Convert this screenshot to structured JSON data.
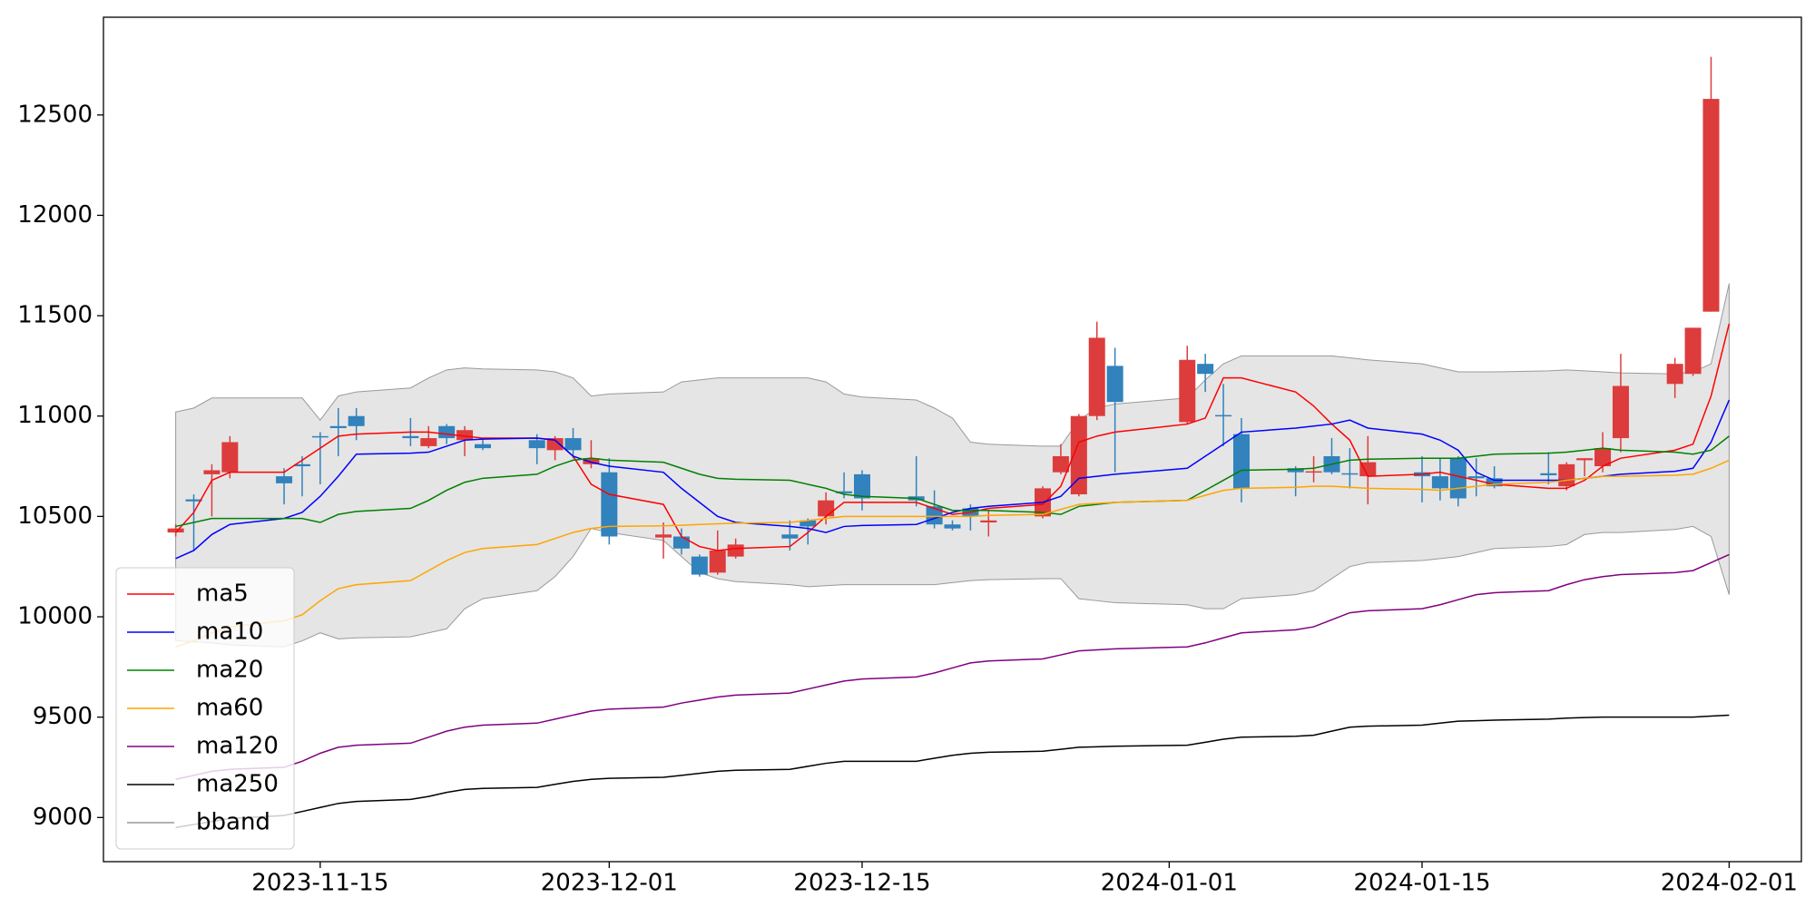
{
  "chart_data": {
    "type": "candlestick",
    "x": [
      "2023-11-07",
      "2023-11-08",
      "2023-11-09",
      "2023-11-10",
      "2023-11-13",
      "2023-11-14",
      "2023-11-15",
      "2023-11-16",
      "2023-11-17",
      "2023-11-20",
      "2023-11-21",
      "2023-11-22",
      "2023-11-23",
      "2023-11-24",
      "2023-11-27",
      "2023-11-28",
      "2023-11-29",
      "2023-11-30",
      "2023-12-01",
      "2023-12-04",
      "2023-12-05",
      "2023-12-06",
      "2023-12-07",
      "2023-12-08",
      "2023-12-11",
      "2023-12-12",
      "2023-12-13",
      "2023-12-14",
      "2023-12-15",
      "2023-12-18",
      "2023-12-19",
      "2023-12-20",
      "2023-12-21",
      "2023-12-22",
      "2023-12-25",
      "2023-12-26",
      "2023-12-27",
      "2023-12-28",
      "2023-12-29",
      "2024-01-02",
      "2024-01-03",
      "2024-01-04",
      "2024-01-05",
      "2024-01-08",
      "2024-01-09",
      "2024-01-10",
      "2024-01-11",
      "2024-01-12",
      "2024-01-15",
      "2024-01-16",
      "2024-01-17",
      "2024-01-18",
      "2024-01-19",
      "2024-01-22",
      "2024-01-23",
      "2024-01-24",
      "2024-01-25",
      "2024-01-26",
      "2024-01-29",
      "2024-01-30",
      "2024-01-31",
      "2024-02-01"
    ],
    "open": [
      10420,
      10585,
      10710,
      10720,
      10700,
      10760,
      10900,
      10950,
      11000,
      10900,
      10850,
      10950,
      10880,
      10860,
      10880,
      10830,
      10890,
      10760,
      10720,
      10395,
      10400,
      10300,
      10220,
      10300,
      10410,
      10480,
      10500,
      10625,
      10710,
      10600,
      10550,
      10460,
      10540,
      10470,
      10500,
      10720,
      10610,
      11000,
      11250,
      10970,
      11260,
      11005,
      10910,
      10740,
      10720,
      10800,
      10715,
      10700,
      10720,
      10700,
      10790,
      10700,
      10690,
      10715,
      10650,
      10780,
      10750,
      10890,
      11160,
      11210,
      11520,
      null
    ],
    "high": [
      10460,
      10610,
      10760,
      10900,
      10740,
      10800,
      10920,
      11040,
      11040,
      10990,
      10950,
      10960,
      10950,
      10890,
      10910,
      10900,
      10940,
      10880,
      10790,
      10470,
      10440,
      10310,
      10430,
      10390,
      10480,
      10490,
      10620,
      10720,
      10730,
      10800,
      10630,
      10480,
      10560,
      10530,
      10650,
      10860,
      11010,
      11470,
      11340,
      11350,
      11310,
      11160,
      10990,
      10750,
      10800,
      10890,
      10840,
      10900,
      10800,
      10790,
      10800,
      10790,
      10750,
      10820,
      10770,
      10790,
      10920,
      11310,
      11290,
      11440,
      12790,
      null
    ],
    "low": [
      10400,
      10330,
      10500,
      10690,
      10560,
      10600,
      10660,
      10800,
      10880,
      10850,
      10840,
      10860,
      10800,
      10830,
      10760,
      10780,
      10790,
      10740,
      10360,
      10290,
      10310,
      10200,
      10210,
      10290,
      10330,
      10360,
      10460,
      10590,
      10530,
      10550,
      10440,
      10430,
      10430,
      10400,
      10490,
      10710,
      10600,
      10980,
      10720,
      10960,
      11120,
      10850,
      10570,
      10600,
      10670,
      10710,
      10640,
      10560,
      10570,
      10580,
      10550,
      10600,
      10640,
      10660,
      10630,
      10700,
      10720,
      10820,
      11090,
      11200,
      11520,
      null
    ],
    "close": [
      10440,
      10575,
      10730,
      10870,
      10665,
      10750,
      10895,
      10940,
      10950,
      10890,
      10890,
      10890,
      10930,
      10840,
      10840,
      10890,
      10830,
      10790,
      10400,
      10410,
      10340,
      10210,
      10330,
      10360,
      10390,
      10450,
      10580,
      10615,
      10590,
      10580,
      10460,
      10440,
      10500,
      10480,
      10640,
      10800,
      11000,
      11390,
      11070,
      11280,
      11210,
      11000,
      10640,
      10720,
      10725,
      10720,
      10710,
      10770,
      10700,
      10640,
      10590,
      10690,
      10650,
      10705,
      10760,
      10790,
      10840,
      11150,
      11260,
      11440,
      12580,
      null
    ],
    "up_color": "#dd3c3c",
    "down_color": "#3182bd",
    "series": [
      {
        "name": "ma5",
        "color": "#ff0000",
        "values": [
          10420,
          10520,
          10680,
          10720,
          10720,
          10780,
          10840,
          10900,
          10910,
          10920,
          10920,
          10910,
          10900,
          10890,
          10890,
          10880,
          10800,
          10660,
          10610,
          10560,
          10400,
          10350,
          10330,
          10340,
          10350,
          10420,
          10500,
          10570,
          10570,
          10570,
          10540,
          10510,
          10520,
          10540,
          10560,
          10650,
          10870,
          10900,
          10920,
          10960,
          10990,
          11190,
          11190,
          11120,
          11050,
          10960,
          10880,
          10700,
          10710,
          10720,
          10700,
          10680,
          10660,
          10640,
          10640,
          10680,
          10750,
          10790,
          10830,
          10860,
          11100,
          11460
        ]
      },
      {
        "name": "ma10",
        "color": "#0000ff",
        "values": [
          10290,
          10330,
          10410,
          10460,
          10490,
          10520,
          10600,
          10700,
          10810,
          10815,
          10820,
          10850,
          10880,
          10885,
          10890,
          10880,
          10800,
          10770,
          10750,
          10720,
          10640,
          10570,
          10500,
          10470,
          10450,
          10440,
          10420,
          10450,
          10455,
          10460,
          10490,
          10520,
          10540,
          10550,
          10570,
          10600,
          10690,
          10700,
          10710,
          10740,
          10800,
          10860,
          10920,
          10940,
          10950,
          10960,
          10980,
          10940,
          10910,
          10880,
          10830,
          10720,
          10680,
          10680,
          10680,
          10690,
          10700,
          10710,
          10725,
          10740,
          10870,
          11080
        ]
      },
      {
        "name": "ma20",
        "color": "#008000",
        "values": [
          10450,
          10470,
          10490,
          10490,
          10490,
          10490,
          10470,
          10510,
          10525,
          10540,
          10580,
          10630,
          10670,
          10690,
          10710,
          10750,
          10780,
          10790,
          10780,
          10770,
          10740,
          10710,
          10690,
          10685,
          10680,
          10660,
          10640,
          10610,
          10600,
          10590,
          10560,
          10530,
          10530,
          10530,
          10520,
          10510,
          10550,
          10560,
          10570,
          10580,
          10630,
          10680,
          10730,
          10735,
          10740,
          10760,
          10780,
          10785,
          10790,
          10790,
          10790,
          10800,
          10810,
          10815,
          10820,
          10830,
          10840,
          10830,
          10820,
          10810,
          10830,
          10900
        ]
      },
      {
        "name": "ma60",
        "color": "#ffa500",
        "values": [
          9850,
          9880,
          9920,
          9950,
          9980,
          10010,
          10080,
          10140,
          10160,
          10180,
          10230,
          10280,
          10320,
          10340,
          10360,
          10390,
          10420,
          10440,
          10450,
          10453,
          10456,
          10460,
          10463,
          10466,
          10470,
          10480,
          10490,
          10500,
          10500,
          10500,
          10500,
          10500,
          10500,
          10505,
          10510,
          10535,
          10560,
          10565,
          10570,
          10580,
          10605,
          10630,
          10640,
          10645,
          10650,
          10650,
          10645,
          10640,
          10635,
          10630,
          10640,
          10650,
          10660,
          10670,
          10680,
          10690,
          10700,
          10700,
          10705,
          10710,
          10740,
          10780
        ]
      },
      {
        "name": "ma120",
        "color": "#800080",
        "values": [
          9190,
          9210,
          9230,
          9240,
          9250,
          9280,
          9320,
          9350,
          9360,
          9370,
          9400,
          9430,
          9450,
          9460,
          9470,
          9490,
          9510,
          9530,
          9540,
          9550,
          9570,
          9585,
          9600,
          9610,
          9620,
          9640,
          9660,
          9680,
          9690,
          9700,
          9720,
          9745,
          9770,
          9780,
          9790,
          9810,
          9830,
          9835,
          9840,
          9850,
          9870,
          9895,
          9920,
          9935,
          9950,
          9985,
          10020,
          10030,
          10040,
          10060,
          10085,
          10110,
          10120,
          10130,
          10160,
          10185,
          10200,
          10210,
          10220,
          10230,
          10270,
          10310
        ]
      },
      {
        "name": "ma250",
        "color": "#000000",
        "values": [
          8950,
          8965,
          8980,
          8995,
          9010,
          9030,
          9050,
          9070,
          9080,
          9090,
          9105,
          9125,
          9140,
          9145,
          9150,
          9165,
          9180,
          9190,
          9195,
          9200,
          9210,
          9220,
          9230,
          9235,
          9240,
          9255,
          9270,
          9280,
          9280,
          9280,
          9295,
          9310,
          9320,
          9325,
          9330,
          9340,
          9350,
          9352,
          9355,
          9360,
          9375,
          9390,
          9400,
          9405,
          9410,
          9430,
          9450,
          9455,
          9460,
          9470,
          9480,
          9482,
          9485,
          9490,
          9495,
          9498,
          9500,
          9500,
          9500,
          9500,
          9505,
          9510
        ]
      }
    ],
    "bband": {
      "name": "bband",
      "color": "#999999",
      "fill": "#e5e5e5",
      "upper": [
        11020,
        11040,
        11090,
        11090,
        11090,
        11090,
        10980,
        11100,
        11120,
        11140,
        11190,
        11230,
        11240,
        11235,
        11230,
        11220,
        11190,
        11100,
        11110,
        11120,
        11170,
        11180,
        11190,
        11190,
        11190,
        11190,
        11170,
        11110,
        11095,
        11080,
        11040,
        10990,
        10870,
        10860,
        10850,
        10850,
        10980,
        11040,
        11060,
        11090,
        11180,
        11260,
        11300,
        11300,
        11300,
        11300,
        11290,
        11280,
        11260,
        11240,
        11220,
        11220,
        11220,
        11225,
        11230,
        11225,
        11220,
        11215,
        11210,
        11220,
        11260,
        11660
      ],
      "lower": [
        9880,
        9875,
        9870,
        9860,
        9850,
        9880,
        9920,
        9890,
        9895,
        9900,
        9920,
        9940,
        10040,
        10090,
        10130,
        10200,
        10300,
        10440,
        10420,
        10380,
        10300,
        10220,
        10190,
        10175,
        10160,
        10150,
        10155,
        10160,
        10160,
        10160,
        10160,
        10170,
        10180,
        10185,
        10190,
        10190,
        10090,
        10080,
        10070,
        10060,
        10040,
        10040,
        10090,
        10110,
        10130,
        10190,
        10250,
        10270,
        10280,
        10290,
        10300,
        10320,
        10340,
        10350,
        10360,
        10410,
        10420,
        10420,
        10435,
        10450,
        10400,
        10110
      ]
    },
    "xlim": [
      "2023-11-03",
      "2024-02-05"
    ],
    "xticks": [
      "2023-11-15",
      "2023-12-01",
      "2023-12-15",
      "2024-01-01",
      "2024-01-15",
      "2024-02-01"
    ],
    "ylim": [
      8780,
      12987
    ],
    "yticks": [
      9000,
      9500,
      10000,
      10500,
      11000,
      11500,
      12000,
      12500
    ],
    "grid": false,
    "legend": "lower left"
  }
}
